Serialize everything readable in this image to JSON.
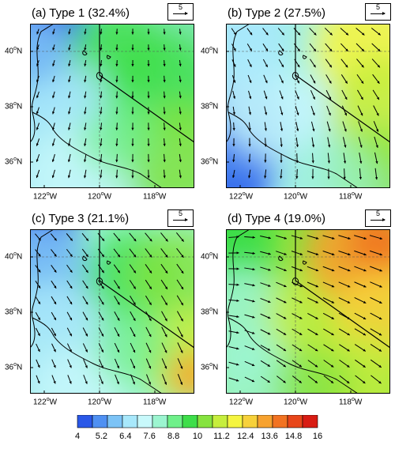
{
  "panels": [
    {
      "title": "(a) Type 1 (32.4%)",
      "ref_value": "5"
    },
    {
      "title": "(b) Type 2 (27.5%)",
      "ref_value": "5"
    },
    {
      "title": "(c) Type 3 (21.1%)",
      "ref_value": "5"
    },
    {
      "title": "(d) Type 4 (19.0%)",
      "ref_value": "5"
    }
  ],
  "lat_ticks": [
    "40",
    "38",
    "36"
  ],
  "lat_suffix": "N",
  "lon_ticks": [
    "122",
    "120",
    "118"
  ],
  "lon_suffix": "W",
  "colorbar": {
    "labels": [
      "4",
      "5.2",
      "6.4",
      "7.6",
      "8.8",
      "10",
      "11.2",
      "12.4",
      "13.6",
      "14.8",
      "16"
    ],
    "colors": [
      "#2a58e8",
      "#4f90f2",
      "#7cc3f6",
      "#a8e8fb",
      "#c8f9fb",
      "#9cf5d0",
      "#6ff08a",
      "#3ede4a",
      "#86e33f",
      "#c6ee3d",
      "#f5f540",
      "#f7d13a",
      "#f7a22f",
      "#f27322",
      "#e8461a",
      "#d81c13"
    ]
  },
  "colors": {
    "coast": "#000000",
    "vector": "#000000",
    "grid": "#555555"
  }
}
